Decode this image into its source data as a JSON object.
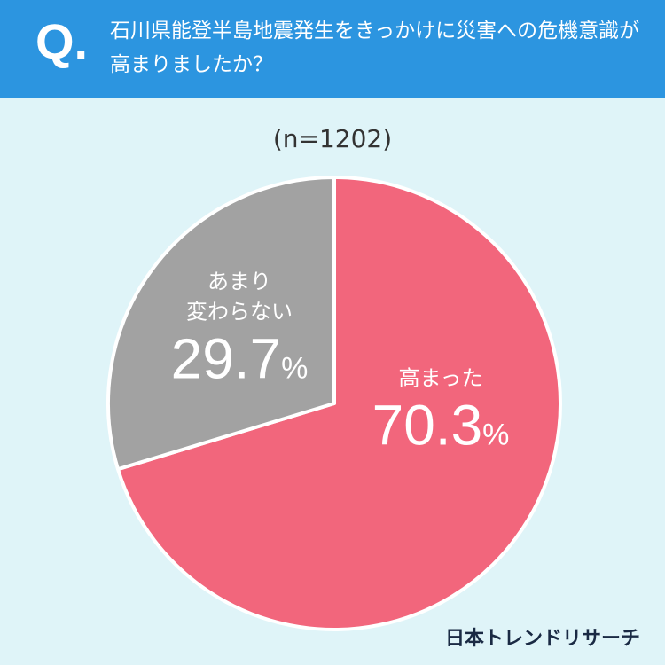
{
  "header": {
    "marker": "Q."
  },
  "chart_data": {
    "type": "pie",
    "title": "石川県能登半島地震発生をきっかけに災害への危機意識が高まりましたか？",
    "subtitle": "(n=1202)",
    "categories": [
      "高まった",
      "あまり\n変わらない"
    ],
    "values": [
      70.3,
      29.7
    ],
    "value_labels": [
      "70.3%",
      "29.7%"
    ],
    "colors": [
      "#f2667c",
      "#a2a2a2"
    ]
  },
  "brand": "日本トレンドリサーチ"
}
